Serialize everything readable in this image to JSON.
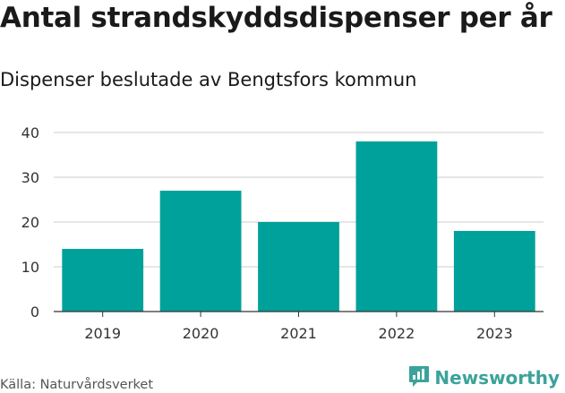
{
  "title": "Antal strandskyddsdispenser per år",
  "subtitle": "Dispenser beslutade av Bengtsfors kommun",
  "footer": {
    "source": "Källa: Naturvårdsverket",
    "brand": "Newsworthy",
    "brand_color": "#3aa39a"
  },
  "colors": {
    "bar": "#00a19a",
    "grid": "#cccccc",
    "axis": "#333333",
    "text": "#333333"
  },
  "chart_data": {
    "type": "bar",
    "title": "Antal strandskyddsdispenser per år",
    "subtitle": "Dispenser beslutade av Bengtsfors kommun",
    "categories": [
      "2019",
      "2020",
      "2021",
      "2022",
      "2023"
    ],
    "values": [
      14,
      27,
      20,
      38,
      18
    ],
    "xlabel": "",
    "ylabel": "",
    "ylim": [
      0,
      40
    ],
    "yticks": [
      "0",
      "10",
      "20",
      "30",
      "40"
    ],
    "grid": true,
    "legend": "none"
  }
}
